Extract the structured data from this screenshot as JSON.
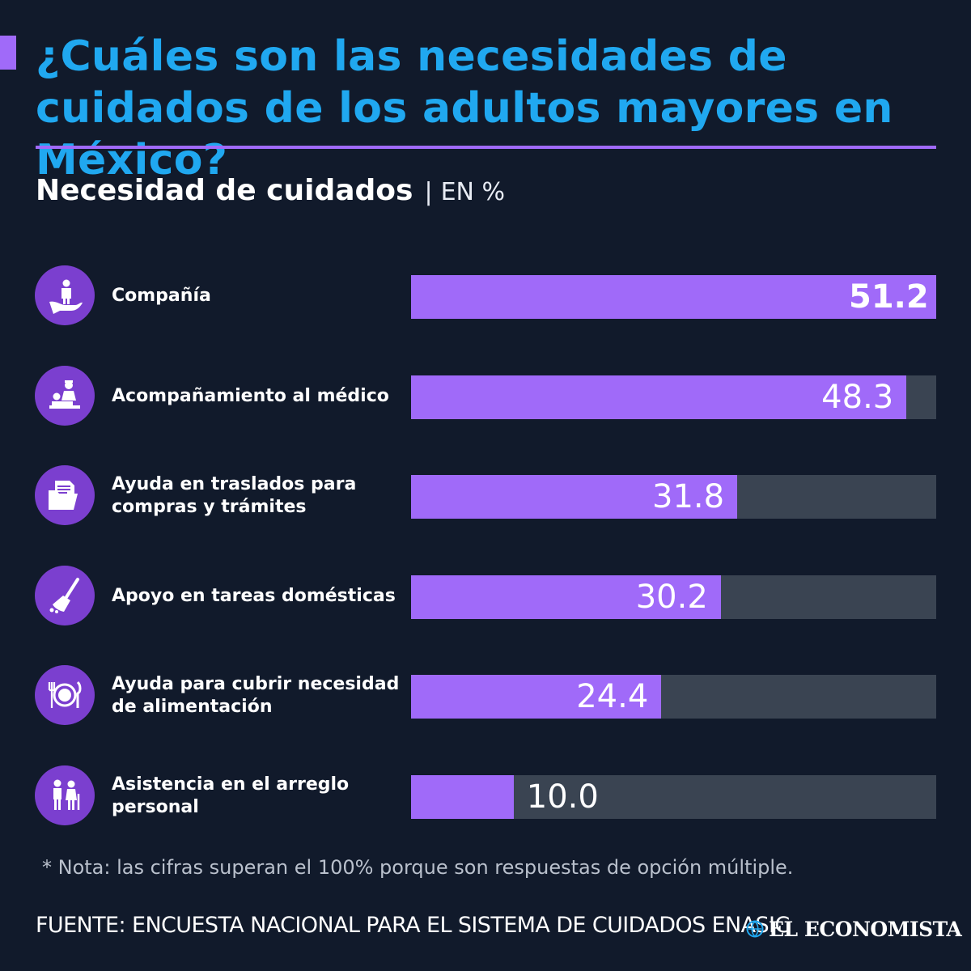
{
  "header": {
    "title": "¿Cuáles son las necesidades de cuidados de los adultos mayores en México?",
    "subtitle": "Necesidad de cuidados",
    "separator": "|",
    "unit": "EN %"
  },
  "colors": {
    "background": "#111a2b",
    "accent": "#a06af9",
    "title": "#20a8f0",
    "track": "#3a4452",
    "icon_circle": "#7b3fcf"
  },
  "chart_data": {
    "type": "bar",
    "orientation": "horizontal",
    "xlim": [
      0,
      51.2
    ],
    "grid": false,
    "categories": [
      "Compañía",
      "Acompañamiento al médico",
      "Ayuda en traslados para compras y trámites",
      "Apoyo en tareas domésticas",
      "Ayuda para cubrir necesidad de alimentación",
      "Asistencia en el arreglo personal"
    ],
    "values": [
      51.2,
      48.3,
      31.8,
      30.2,
      24.4,
      10.0
    ],
    "value_labels": [
      "51.2",
      "48.3",
      "31.8",
      "30.2",
      "24.4",
      "10.0"
    ],
    "icons": [
      "caregiver-hand-icon",
      "doctor-patient-icon",
      "documents-folder-icon",
      "broom-icon",
      "plate-cutlery-icon",
      "elderly-couple-icon"
    ]
  },
  "footer": {
    "note": "* Nota: las cifras superan el 100% porque son respuestas de opción múltiple.",
    "source": "FUENTE: ENCUESTA NACIONAL PARA EL SISTEMA DE CUIDADOS ENASIC",
    "brand": "EL ECONOMISTA"
  }
}
